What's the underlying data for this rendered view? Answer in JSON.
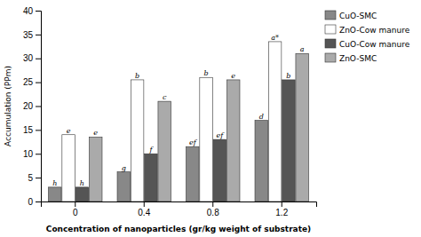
{
  "chart_data": {
    "type": "bar",
    "categories": [
      "0",
      "0.4",
      "0.8",
      "1.2"
    ],
    "series": [
      {
        "name": "CuO-SMC",
        "color": "#888888",
        "values": [
          3.0,
          6.2,
          11.5,
          17.0
        ],
        "annotations": [
          "h",
          "g",
          "ef",
          "d"
        ]
      },
      {
        "name": "ZnO-Cow manure",
        "color": "#ffffff",
        "values": [
          14.0,
          25.5,
          26.0,
          33.5
        ],
        "annotations": [
          "e",
          "b",
          "b",
          "a*"
        ]
      },
      {
        "name": "CuO-Cow manure",
        "color": "#555555",
        "values": [
          3.0,
          10.0,
          13.0,
          25.5
        ],
        "annotations": [
          "h",
          "f",
          "ef",
          "b"
        ]
      },
      {
        "name": "ZnO-SMC",
        "color": "#aaaaaa",
        "values": [
          13.5,
          21.0,
          25.5,
          31.0
        ],
        "annotations": [
          "e",
          "c",
          "e",
          "a"
        ]
      }
    ],
    "xlabel": "Concentration of nanoparticles (gr/kg weight of substrate)",
    "ylabel": "Accumulation (PPm)",
    "ylim": [
      0,
      40
    ],
    "yticks": [
      0,
      5,
      10,
      15,
      20,
      25,
      30,
      35,
      40
    ],
    "grid": false,
    "legend": "right"
  }
}
